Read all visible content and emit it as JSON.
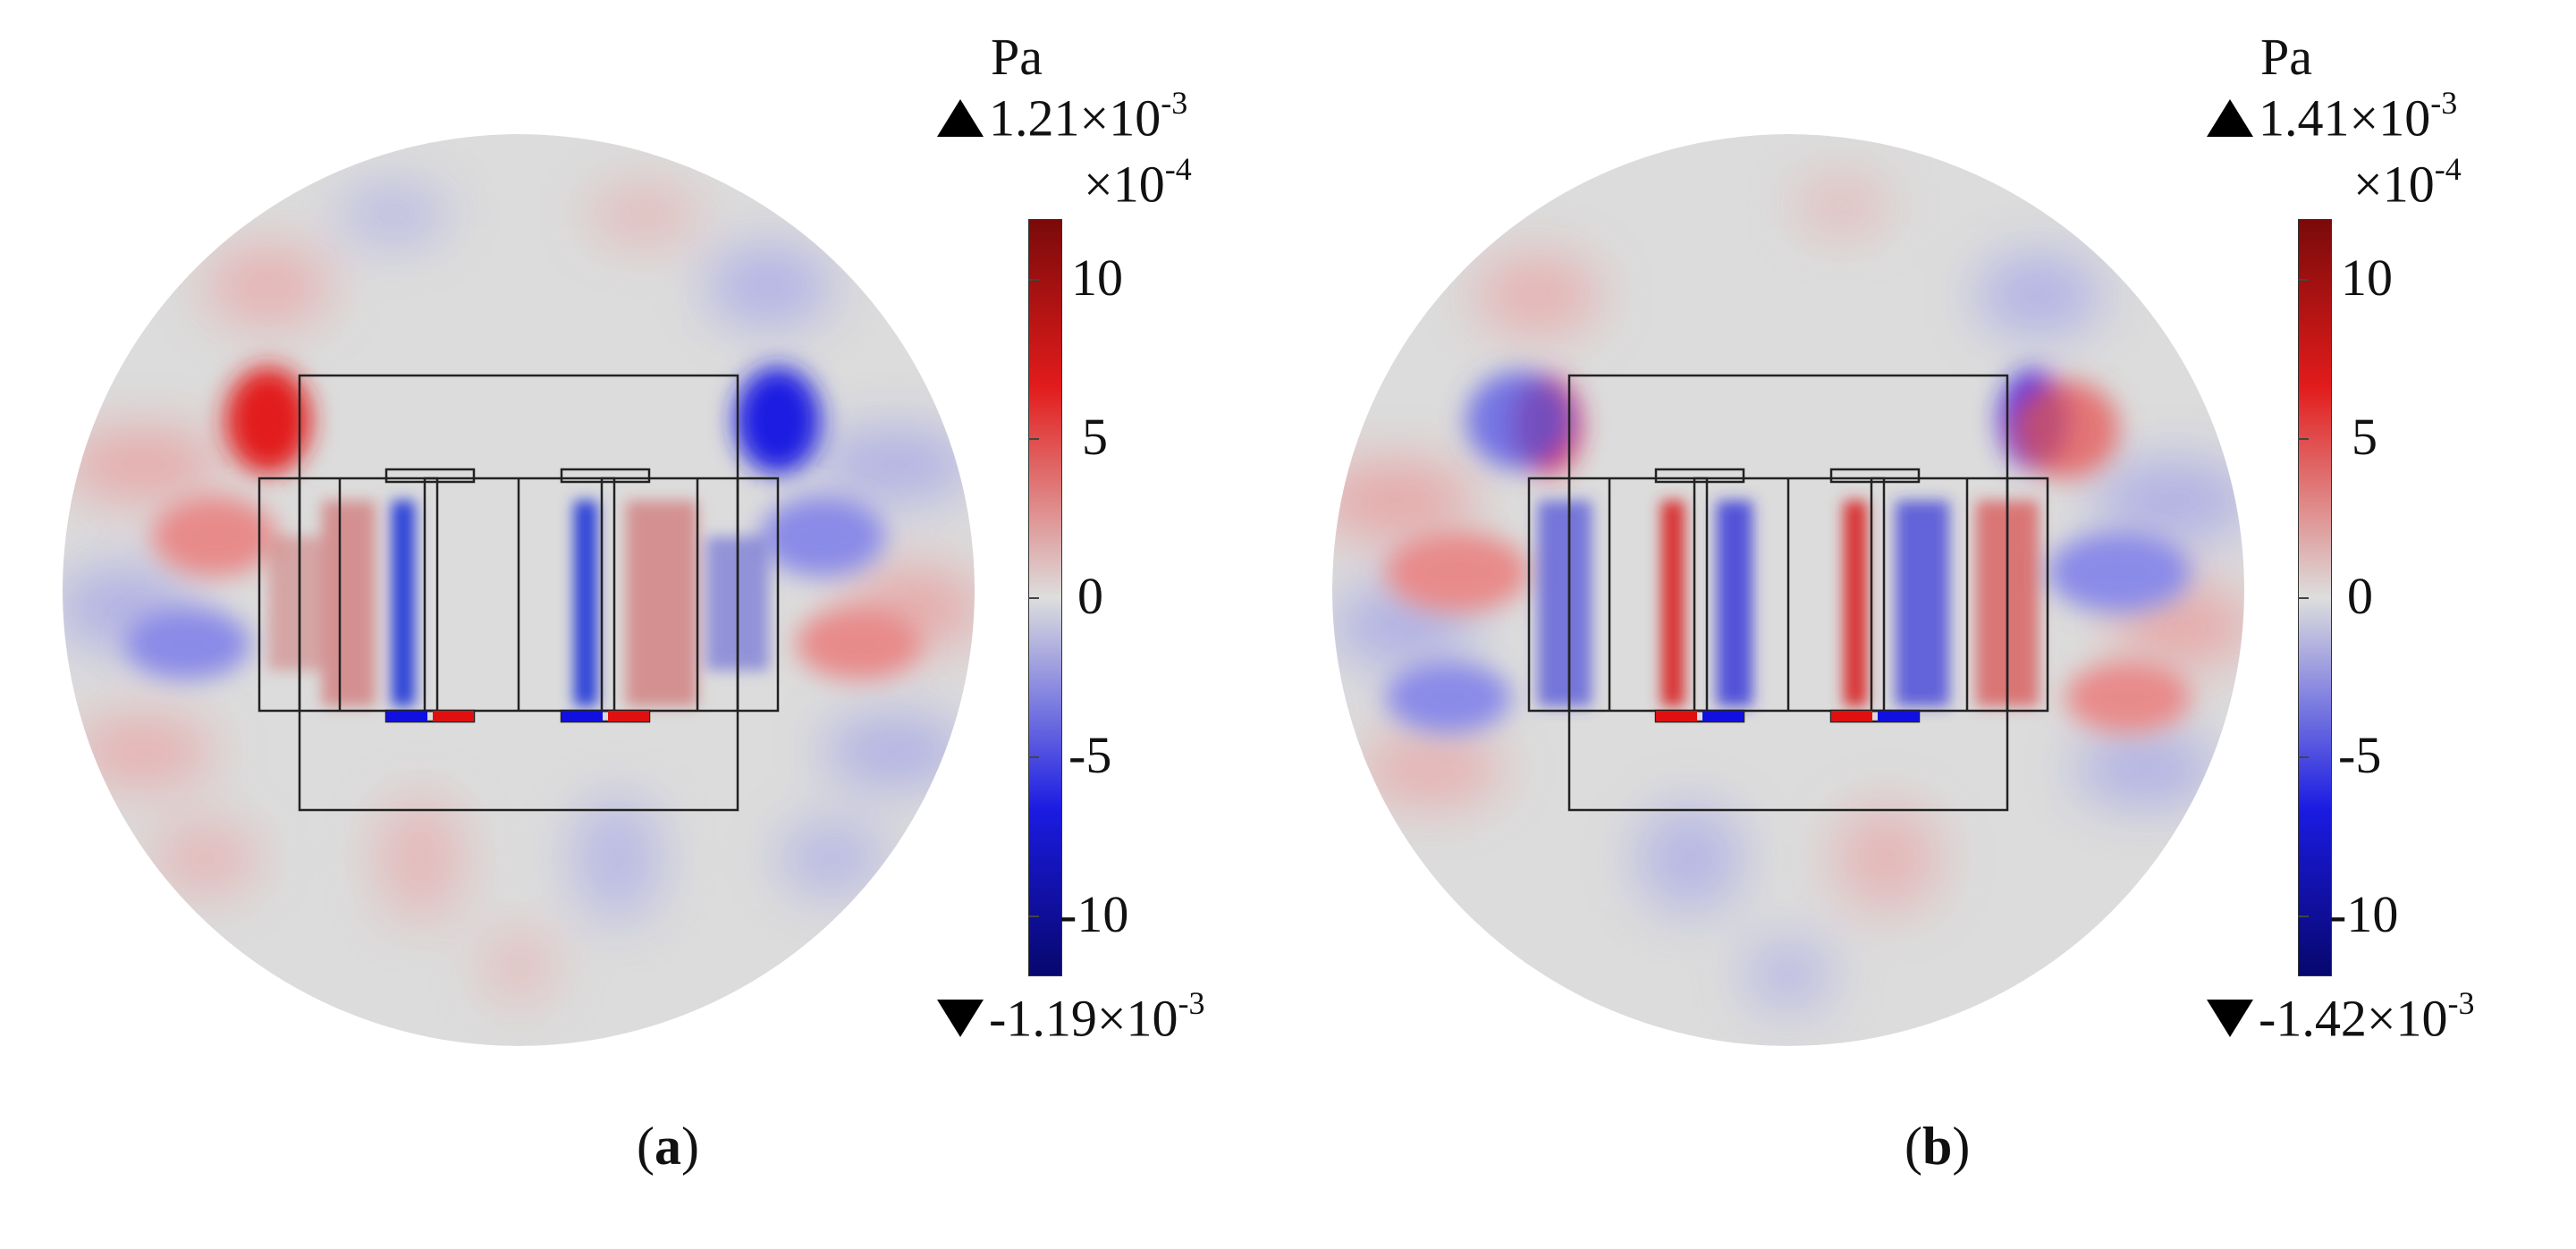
{
  "panels": [
    {
      "id": "a",
      "unit": "Pa",
      "max_mantissa": "1.21",
      "min_mantissa": "-1.19",
      "ext_base": "×10",
      "ext_exp": "-3",
      "mult_base": "×10",
      "mult_exp": "-4",
      "ticks": [
        "10",
        "5",
        "0",
        "-5",
        "-10"
      ],
      "caption_open": "(",
      "caption_letter": "a",
      "caption_close": ")"
    },
    {
      "id": "b",
      "unit": "Pa",
      "max_mantissa": "1.41",
      "min_mantissa": "-1.42",
      "ext_base": "×10",
      "ext_exp": "-3",
      "mult_base": "×10",
      "mult_exp": "-4",
      "ticks": [
        "10",
        "5",
        "0",
        "-5",
        "-10"
      ],
      "caption_open": "(",
      "caption_letter": "b",
      "caption_close": ")"
    }
  ],
  "colorbar_colors": [
    "#800000",
    "#e01010",
    "#e0e0e0",
    "#1010e0",
    "#000080"
  ]
}
